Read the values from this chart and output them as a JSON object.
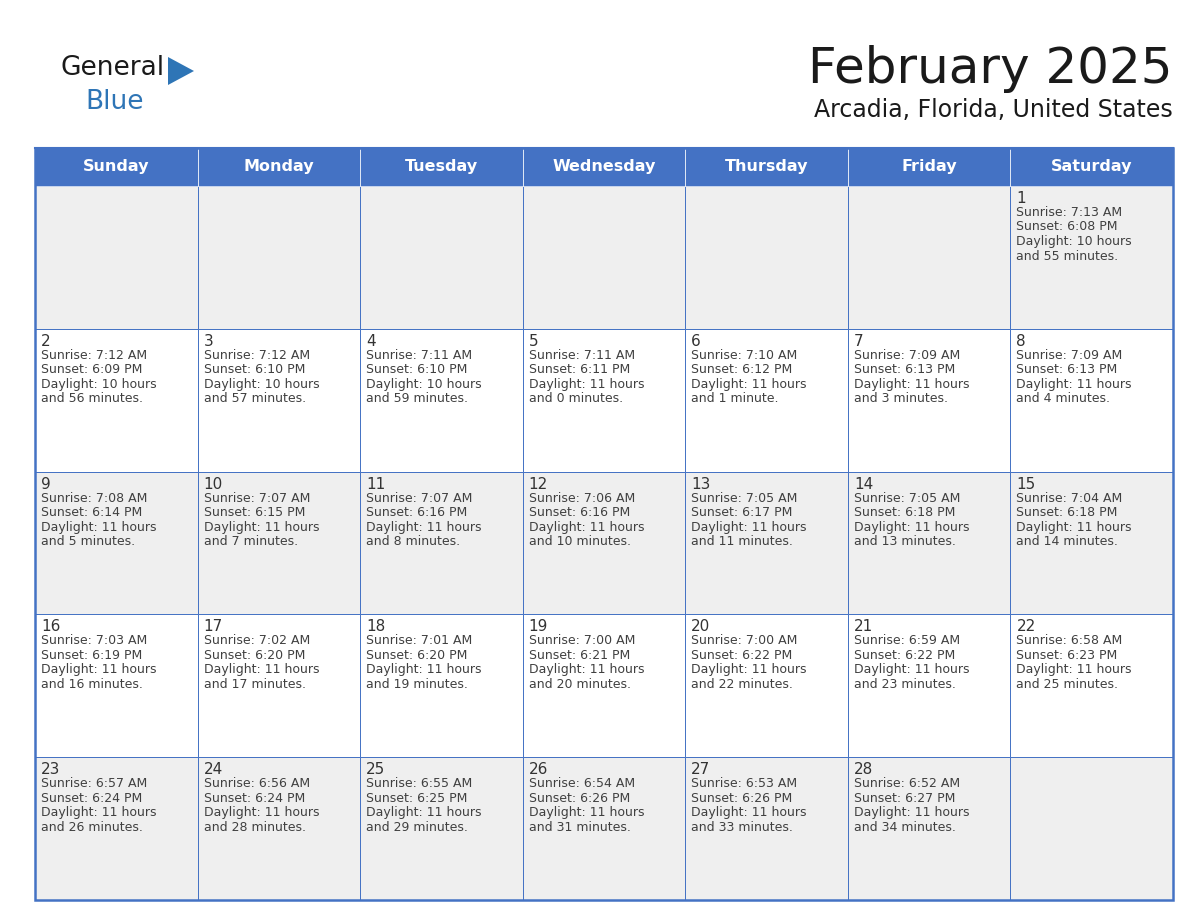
{
  "title": "February 2025",
  "subtitle": "Arcadia, Florida, United States",
  "header_bg": "#4472C4",
  "header_text_color": "#FFFFFF",
  "day_names": [
    "Sunday",
    "Monday",
    "Tuesday",
    "Wednesday",
    "Thursday",
    "Friday",
    "Saturday"
  ],
  "cell_bg_even": "#EFEFEF",
  "cell_bg_odd": "#FFFFFF",
  "cell_border_color": "#4472C4",
  "day_number_color": "#333333",
  "info_text_color": "#404040",
  "days": [
    {
      "date": 1,
      "col": 6,
      "row": 0,
      "sunrise": "7:13 AM",
      "sunset": "6:08 PM",
      "daylight": "10 hours and 55 minutes."
    },
    {
      "date": 2,
      "col": 0,
      "row": 1,
      "sunrise": "7:12 AM",
      "sunset": "6:09 PM",
      "daylight": "10 hours and 56 minutes."
    },
    {
      "date": 3,
      "col": 1,
      "row": 1,
      "sunrise": "7:12 AM",
      "sunset": "6:10 PM",
      "daylight": "10 hours and 57 minutes."
    },
    {
      "date": 4,
      "col": 2,
      "row": 1,
      "sunrise": "7:11 AM",
      "sunset": "6:10 PM",
      "daylight": "10 hours and 59 minutes."
    },
    {
      "date": 5,
      "col": 3,
      "row": 1,
      "sunrise": "7:11 AM",
      "sunset": "6:11 PM",
      "daylight": "11 hours and 0 minutes."
    },
    {
      "date": 6,
      "col": 4,
      "row": 1,
      "sunrise": "7:10 AM",
      "sunset": "6:12 PM",
      "daylight": "11 hours and 1 minute."
    },
    {
      "date": 7,
      "col": 5,
      "row": 1,
      "sunrise": "7:09 AM",
      "sunset": "6:13 PM",
      "daylight": "11 hours and 3 minutes."
    },
    {
      "date": 8,
      "col": 6,
      "row": 1,
      "sunrise": "7:09 AM",
      "sunset": "6:13 PM",
      "daylight": "11 hours and 4 minutes."
    },
    {
      "date": 9,
      "col": 0,
      "row": 2,
      "sunrise": "7:08 AM",
      "sunset": "6:14 PM",
      "daylight": "11 hours and 5 minutes."
    },
    {
      "date": 10,
      "col": 1,
      "row": 2,
      "sunrise": "7:07 AM",
      "sunset": "6:15 PM",
      "daylight": "11 hours and 7 minutes."
    },
    {
      "date": 11,
      "col": 2,
      "row": 2,
      "sunrise": "7:07 AM",
      "sunset": "6:16 PM",
      "daylight": "11 hours and 8 minutes."
    },
    {
      "date": 12,
      "col": 3,
      "row": 2,
      "sunrise": "7:06 AM",
      "sunset": "6:16 PM",
      "daylight": "11 hours and 10 minutes."
    },
    {
      "date": 13,
      "col": 4,
      "row": 2,
      "sunrise": "7:05 AM",
      "sunset": "6:17 PM",
      "daylight": "11 hours and 11 minutes."
    },
    {
      "date": 14,
      "col": 5,
      "row": 2,
      "sunrise": "7:05 AM",
      "sunset": "6:18 PM",
      "daylight": "11 hours and 13 minutes."
    },
    {
      "date": 15,
      "col": 6,
      "row": 2,
      "sunrise": "7:04 AM",
      "sunset": "6:18 PM",
      "daylight": "11 hours and 14 minutes."
    },
    {
      "date": 16,
      "col": 0,
      "row": 3,
      "sunrise": "7:03 AM",
      "sunset": "6:19 PM",
      "daylight": "11 hours and 16 minutes."
    },
    {
      "date": 17,
      "col": 1,
      "row": 3,
      "sunrise": "7:02 AM",
      "sunset": "6:20 PM",
      "daylight": "11 hours and 17 minutes."
    },
    {
      "date": 18,
      "col": 2,
      "row": 3,
      "sunrise": "7:01 AM",
      "sunset": "6:20 PM",
      "daylight": "11 hours and 19 minutes."
    },
    {
      "date": 19,
      "col": 3,
      "row": 3,
      "sunrise": "7:00 AM",
      "sunset": "6:21 PM",
      "daylight": "11 hours and 20 minutes."
    },
    {
      "date": 20,
      "col": 4,
      "row": 3,
      "sunrise": "7:00 AM",
      "sunset": "6:22 PM",
      "daylight": "11 hours and 22 minutes."
    },
    {
      "date": 21,
      "col": 5,
      "row": 3,
      "sunrise": "6:59 AM",
      "sunset": "6:22 PM",
      "daylight": "11 hours and 23 minutes."
    },
    {
      "date": 22,
      "col": 6,
      "row": 3,
      "sunrise": "6:58 AM",
      "sunset": "6:23 PM",
      "daylight": "11 hours and 25 minutes."
    },
    {
      "date": 23,
      "col": 0,
      "row": 4,
      "sunrise": "6:57 AM",
      "sunset": "6:24 PM",
      "daylight": "11 hours and 26 minutes."
    },
    {
      "date": 24,
      "col": 1,
      "row": 4,
      "sunrise": "6:56 AM",
      "sunset": "6:24 PM",
      "daylight": "11 hours and 28 minutes."
    },
    {
      "date": 25,
      "col": 2,
      "row": 4,
      "sunrise": "6:55 AM",
      "sunset": "6:25 PM",
      "daylight": "11 hours and 29 minutes."
    },
    {
      "date": 26,
      "col": 3,
      "row": 4,
      "sunrise": "6:54 AM",
      "sunset": "6:26 PM",
      "daylight": "11 hours and 31 minutes."
    },
    {
      "date": 27,
      "col": 4,
      "row": 4,
      "sunrise": "6:53 AM",
      "sunset": "6:26 PM",
      "daylight": "11 hours and 33 minutes."
    },
    {
      "date": 28,
      "col": 5,
      "row": 4,
      "sunrise": "6:52 AM",
      "sunset": "6:27 PM",
      "daylight": "11 hours and 34 minutes."
    }
  ],
  "num_rows": 5,
  "num_cols": 7,
  "logo_text1": "General",
  "logo_text2": "Blue",
  "logo_triangle_color": "#2E75B6",
  "logo_text1_color": "#1A1A1A",
  "logo_text2_color": "#2E75B6"
}
